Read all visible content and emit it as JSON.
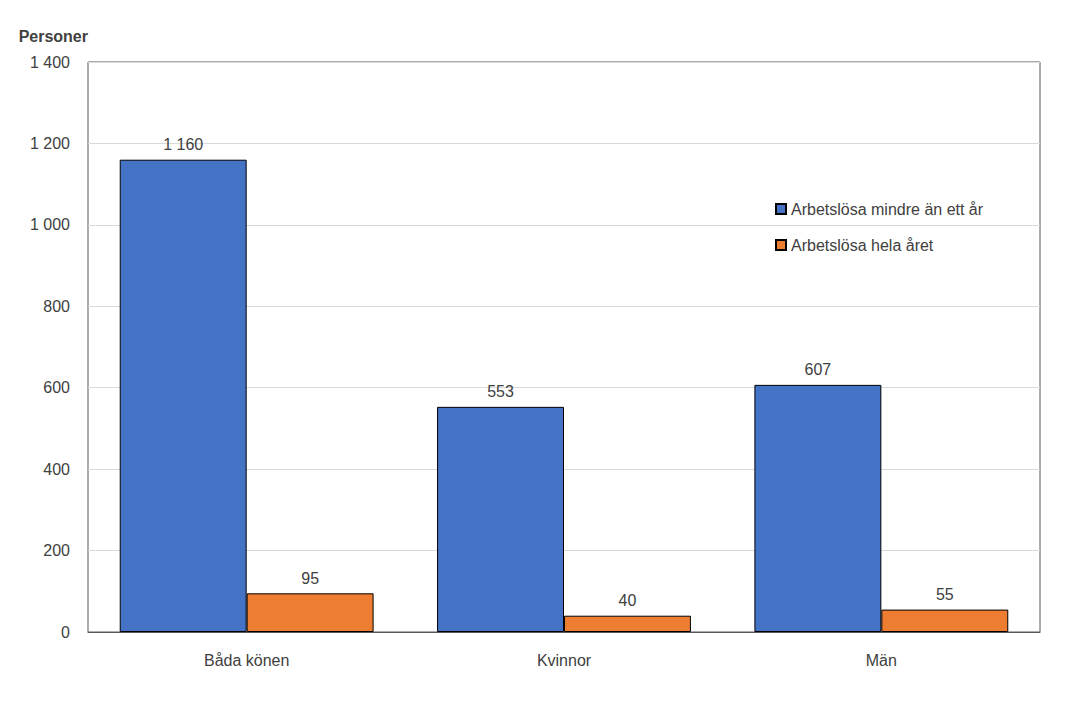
{
  "chart_data": {
    "type": "bar",
    "y_label": "Personer",
    "categories": [
      "Båda könen",
      "Kvinnor",
      "Män"
    ],
    "series": [
      {
        "name": "Arbetslösa mindre än ett år",
        "color": "#4472c4",
        "values": [
          1160,
          553,
          607
        ],
        "value_labels": [
          "1 160",
          "553",
          "607"
        ]
      },
      {
        "name": "Arbetslösa hela året",
        "color": "#ed7d31",
        "values": [
          95,
          40,
          55
        ]
      }
    ],
    "ylim": [
      0,
      1400
    ],
    "yticks": [
      0,
      200,
      400,
      600,
      800,
      {
        "value": 1000,
        "label": "1 000"
      },
      {
        "value": 1200,
        "label": "1 200"
      },
      {
        "value": 1400,
        "label": "1 400"
      }
    ],
    "grid": true,
    "legend": "right",
    "data_labels": true
  }
}
